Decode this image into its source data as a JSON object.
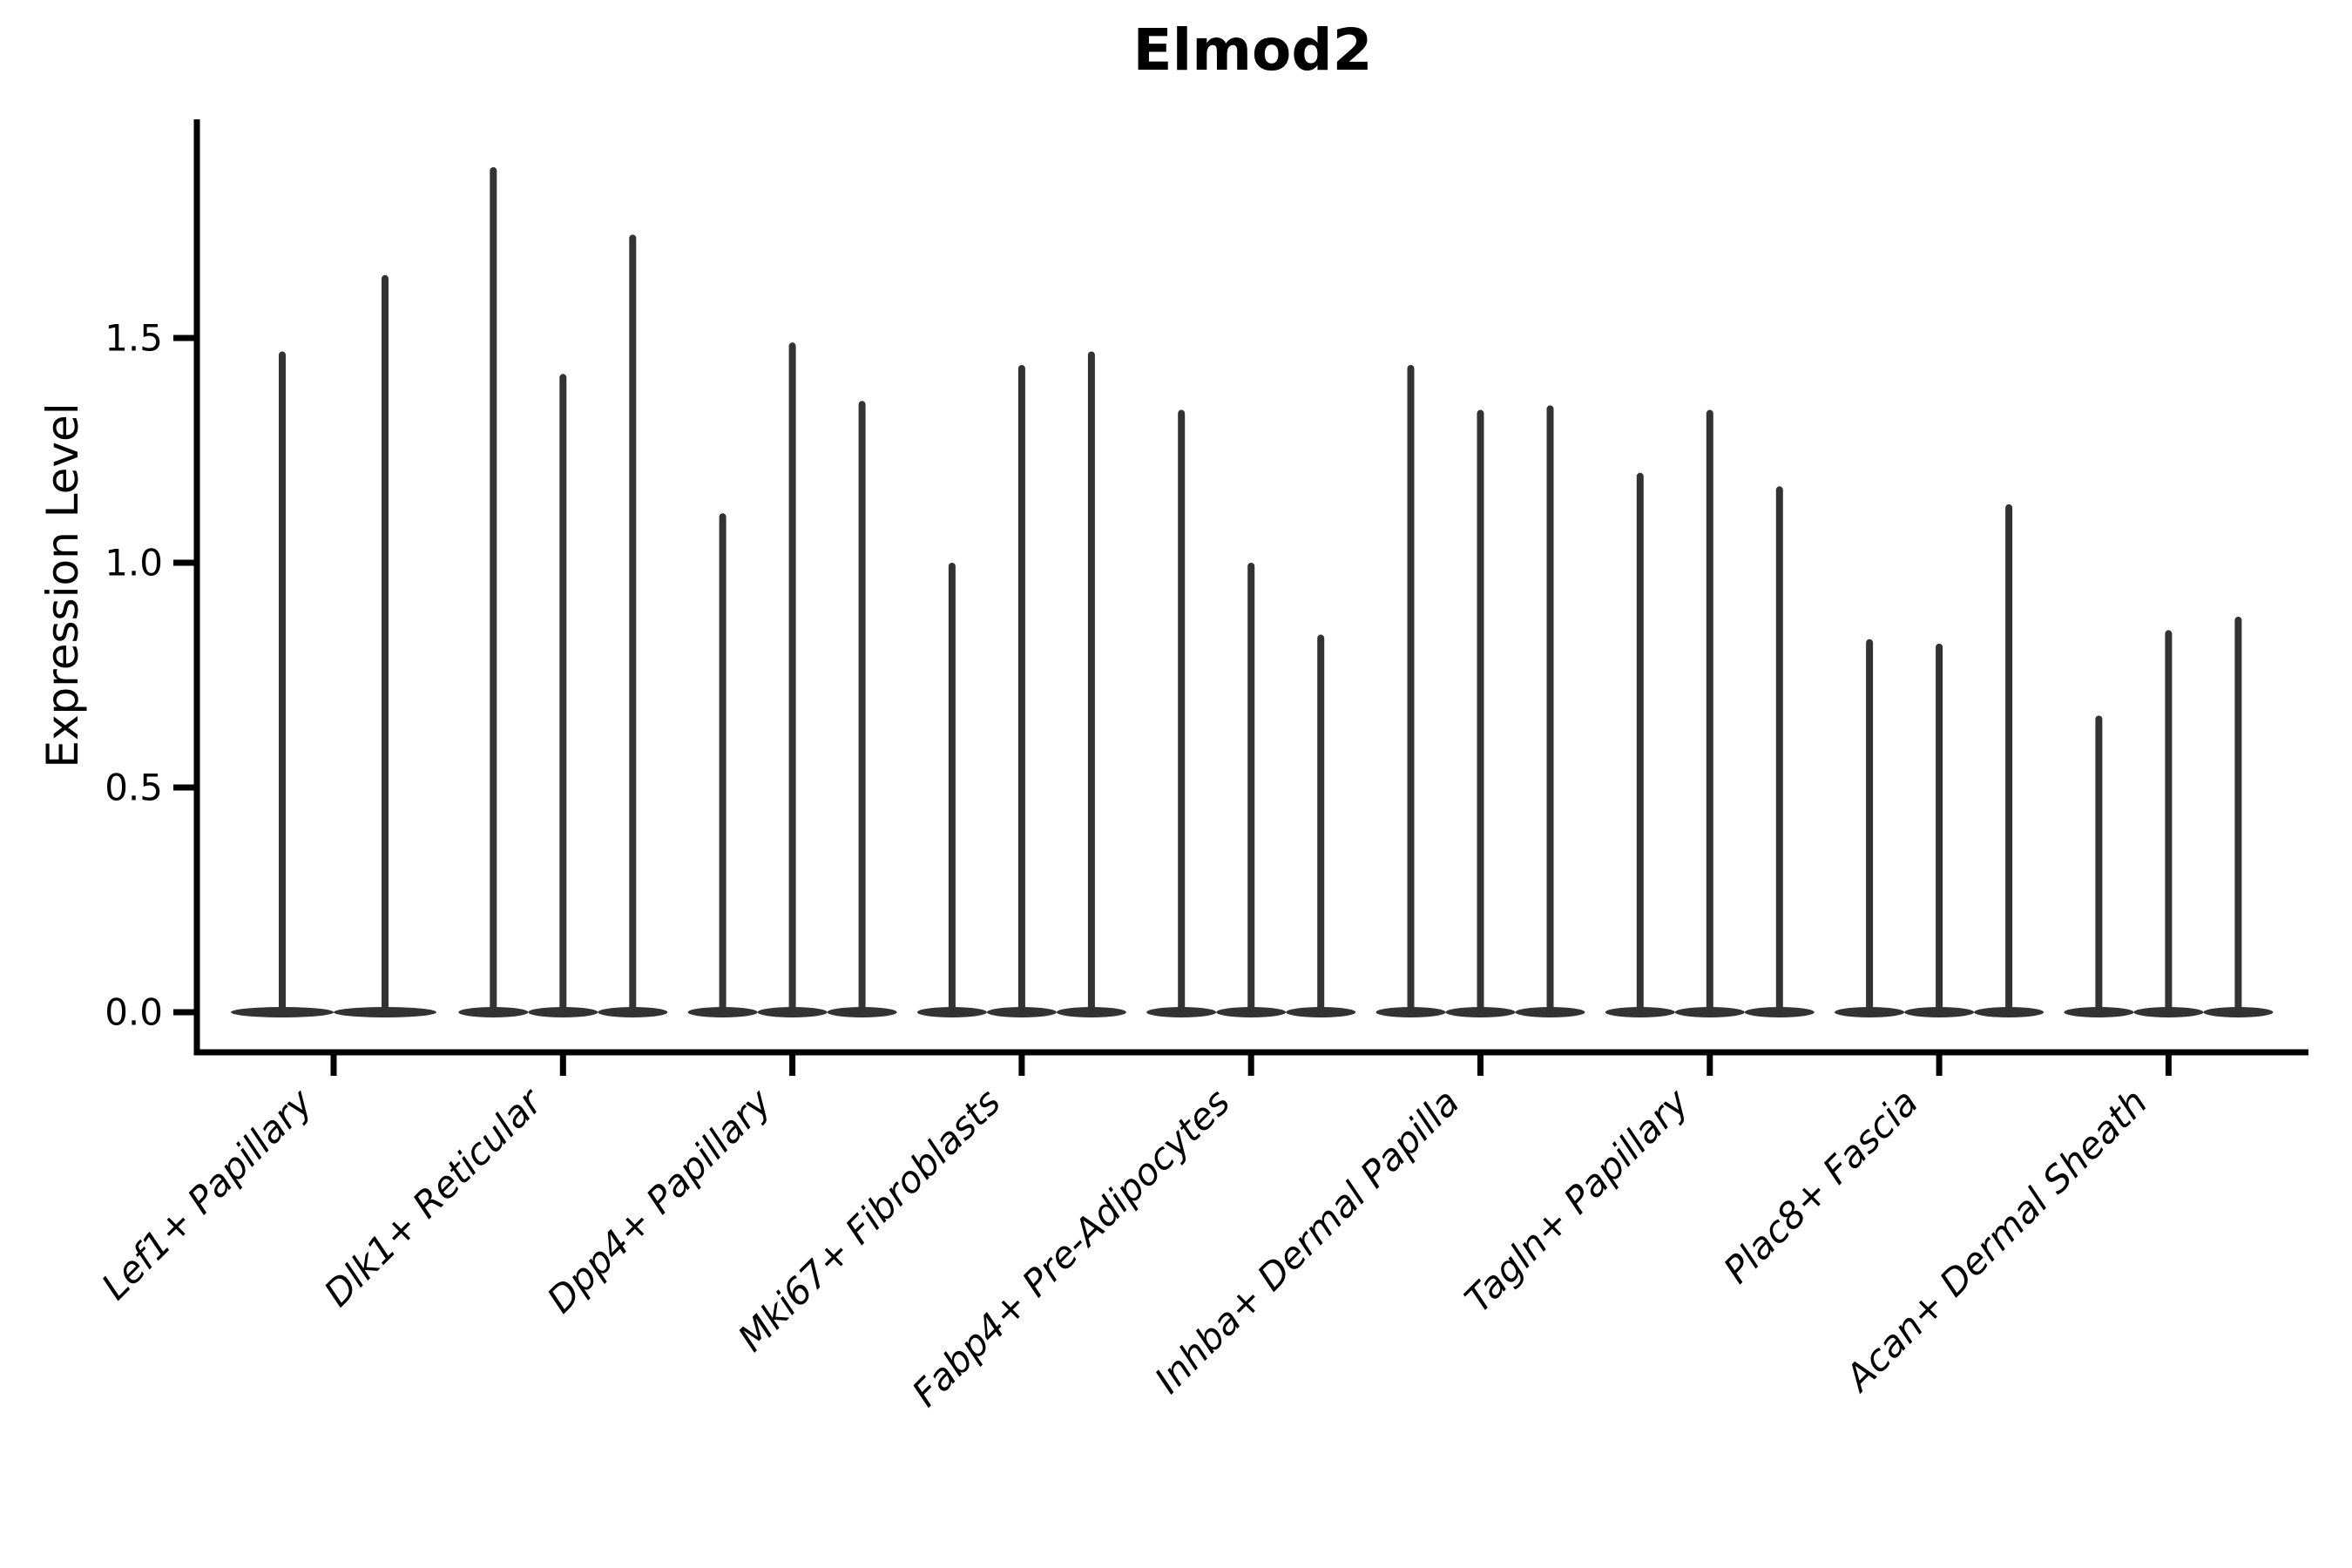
{
  "title": "Elmod2",
  "axes": {
    "y_label": "Expression Level",
    "y_tick_labels": [
      "0.0",
      "0.5",
      "1.0",
      "1.5"
    ]
  },
  "colors": {
    "violin": "#333333",
    "axis": "#000000",
    "text": "#000000",
    "background": "#ffffff"
  },
  "chart_data": {
    "type": "violin",
    "title": "Elmod2",
    "xlabel": "",
    "ylabel": "Expression Level",
    "ylim": [
      -0.09,
      1.98
    ],
    "y_ticks": [
      0.0,
      0.5,
      1.0,
      1.5
    ],
    "grid": false,
    "legend": "none",
    "orientation": "vertical",
    "note": "Each violin is a dense flat bulge at 0 with a thin tail rising to its maximum expression value",
    "categories": [
      "Lef1+ Papillary",
      "Dlk1+ Reticular",
      "Dpp4+ Papillary",
      "Mki67+ Fibroblasts",
      "Fabp4+ Pre-Adipocytes",
      "Inhba+ Dermal Papilla",
      "Tagln+ Papillary",
      "Plac8+ Fascia",
      "Acan+ Dermal Sheath"
    ],
    "series": [
      {
        "category": "Lef1+ Papillary",
        "violin_maxima": [
          1.47,
          1.64
        ]
      },
      {
        "category": "Dlk1+ Reticular",
        "violin_maxima": [
          1.88,
          1.42,
          1.73
        ]
      },
      {
        "category": "Dpp4+ Papillary",
        "violin_maxima": [
          1.11,
          1.49,
          1.36
        ]
      },
      {
        "category": "Mki67+ Fibroblasts",
        "violin_maxima": [
          1.0,
          1.44,
          1.47
        ]
      },
      {
        "category": "Fabp4+ Pre-Adipocytes",
        "violin_maxima": [
          1.34,
          1.0,
          0.84
        ]
      },
      {
        "category": "Inhba+ Dermal Papilla",
        "violin_maxima": [
          1.44,
          1.34,
          1.35
        ]
      },
      {
        "category": "Tagln+ Papillary",
        "violin_maxima": [
          1.2,
          1.34,
          1.17
        ]
      },
      {
        "category": "Plac8+ Fascia",
        "violin_maxima": [
          0.83,
          0.82,
          1.13
        ]
      },
      {
        "category": "Acan+ Dermal Sheath",
        "violin_maxima": [
          0.66,
          0.85,
          0.88
        ]
      }
    ]
  }
}
